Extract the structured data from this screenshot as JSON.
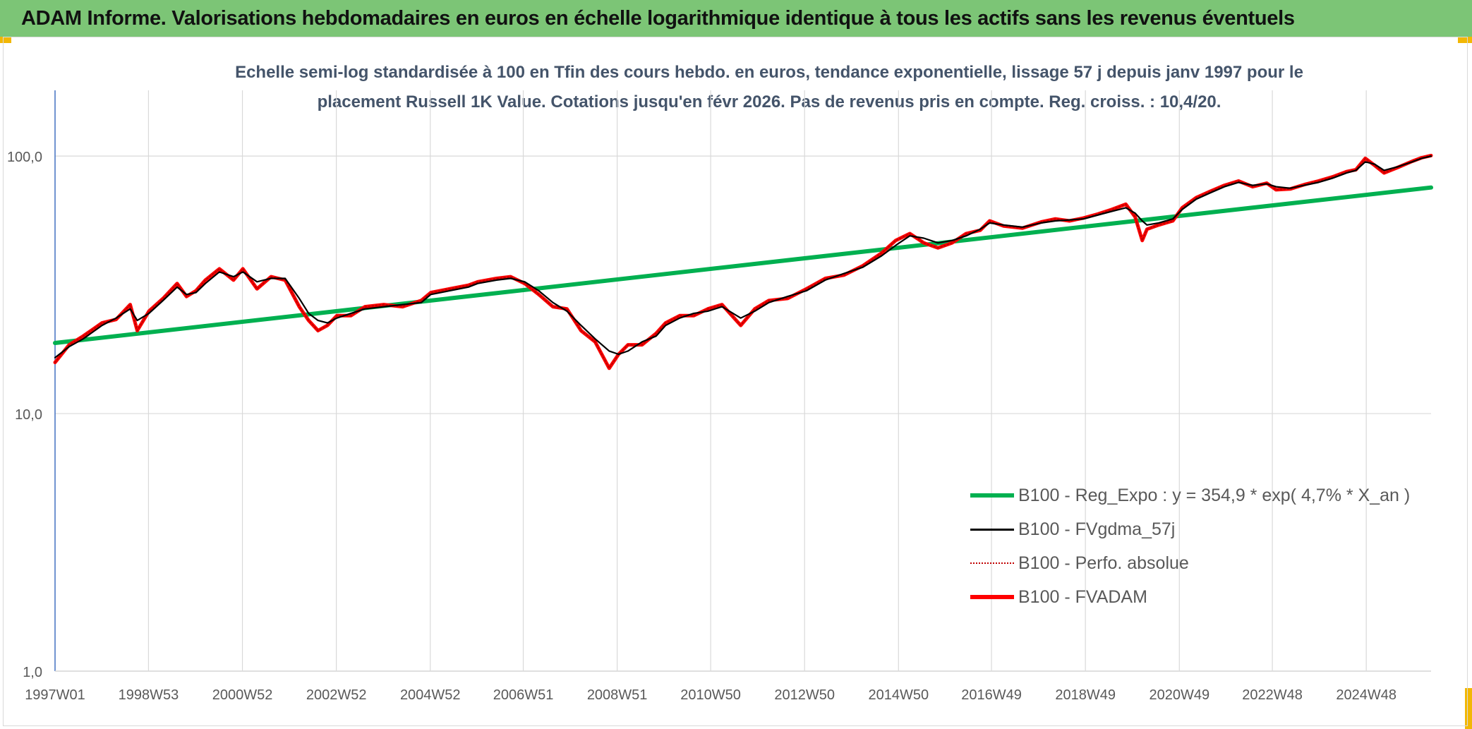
{
  "header": {
    "banner_title": "ADAM Informe. Valorisations hebdomadaires en euros en échelle logarithmique identique à tous les actifs sans les revenus éventuels"
  },
  "colors": {
    "banner_bg": "#7cc576",
    "accent_corner": "#f2b705",
    "title_text": "#44546a",
    "grid": "#d9d9d9",
    "axis": "#4472c4"
  },
  "chart_data": {
    "type": "line",
    "title_line1": "Echelle semi-log standardisée à 100 en Tfin des cours hebdo. en euros, tendance exponentielle, lissage 57 j depuis janv 1997 pour le",
    "title_line2": "placement Russell 1K Value. Cotations jusqu'en févr 2026. Pas de revenus pris en compte. Reg. croiss. : 10,4/20.",
    "y_scale": "log",
    "ylim": [
      1,
      180
    ],
    "xlim": [
      1997.0,
      2026.3
    ],
    "y_tick_values": [
      1,
      10,
      100
    ],
    "y_tick_labels": [
      "1,0",
      "10,0",
      "100,0"
    ],
    "x_tick_values": [
      1997.0,
      1998.99,
      2000.99,
      2002.99,
      2004.99,
      2006.97,
      2008.97,
      2010.96,
      2012.96,
      2014.96,
      2016.94,
      2018.94,
      2020.94,
      2022.92,
      2024.92
    ],
    "x_tick_labels": [
      "1997W01",
      "1998W53",
      "2000W52",
      "2002W52",
      "2004W52",
      "2006W51",
      "2008W51",
      "2010W50",
      "2012W50",
      "2014W50",
      "2016W49",
      "2018W49",
      "2020W49",
      "2022W48",
      "2024W48"
    ],
    "grid": true,
    "legend_position": "bottom-right",
    "series": [
      {
        "name": "B100 - Reg_Expo : y = 354,9 * exp( 4,7% *  X_an )",
        "color": "#00b050",
        "style": "solid-thick",
        "x": [
          1997.0,
          2026.3
        ],
        "y": [
          18.8,
          75.5
        ]
      },
      {
        "name": "B100 - FVgdma_57j",
        "color": "#000000",
        "style": "solid",
        "x": [
          1997.0,
          1997.3,
          1997.6,
          1998.0,
          1998.3,
          1998.6,
          1998.75,
          1999.0,
          1999.3,
          1999.6,
          1999.8,
          2000.0,
          2000.2,
          2000.5,
          2000.8,
          2001.0,
          2001.3,
          2001.6,
          2001.9,
          2002.2,
          2002.4,
          2002.6,
          2002.8,
          2003.0,
          2003.3,
          2003.6,
          2004.0,
          2004.4,
          2004.8,
          2005.0,
          2005.4,
          2005.8,
          2006.0,
          2006.4,
          2006.7,
          2007.0,
          2007.3,
          2007.6,
          2007.9,
          2008.2,
          2008.5,
          2008.8,
          2009.0,
          2009.2,
          2009.5,
          2009.8,
          2010.0,
          2010.3,
          2010.6,
          2010.9,
          2011.2,
          2011.6,
          2011.9,
          2012.2,
          2012.6,
          2013.0,
          2013.4,
          2013.8,
          2014.2,
          2014.6,
          2014.9,
          2015.2,
          2015.5,
          2015.8,
          2016.1,
          2016.4,
          2016.7,
          2016.9,
          2017.2,
          2017.6,
          2018.0,
          2018.3,
          2018.6,
          2018.9,
          2019.2,
          2019.5,
          2019.8,
          2020.0,
          2020.15,
          2020.25,
          2020.5,
          2020.8,
          2021.0,
          2021.3,
          2021.6,
          2021.9,
          2022.2,
          2022.5,
          2022.8,
          2023.0,
          2023.3,
          2023.6,
          2023.9,
          2024.2,
          2024.5,
          2024.7,
          2024.9,
          2025.1,
          2025.3,
          2025.6,
          2025.9,
          2026.1,
          2026.3
        ],
        "y": [
          16.5,
          18.2,
          19.5,
          22.0,
          23.5,
          25.5,
          23.0,
          24.5,
          27.5,
          31.0,
          29.0,
          29.5,
          32.0,
          35.5,
          34.0,
          35.5,
          32.5,
          33.5,
          33.5,
          28.0,
          24.5,
          23.0,
          22.5,
          23.5,
          24.5,
          25.5,
          26.0,
          26.5,
          27.0,
          29.0,
          30.0,
          31.0,
          32.0,
          33.0,
          33.5,
          32.5,
          30.0,
          27.0,
          25.0,
          22.0,
          19.5,
          17.5,
          17.0,
          17.5,
          19.0,
          20.0,
          22.0,
          23.5,
          24.5,
          25.0,
          26.0,
          23.5,
          25.0,
          27.0,
          28.5,
          30.0,
          33.0,
          35.0,
          37.0,
          41.0,
          45.0,
          49.0,
          48.0,
          46.0,
          47.0,
          49.0,
          52.0,
          55.0,
          54.0,
          53.0,
          55.0,
          56.0,
          56.5,
          57.0,
          59.0,
          61.0,
          63.0,
          60.0,
          56.0,
          54.0,
          55.0,
          57.0,
          62.0,
          68.0,
          72.0,
          76.0,
          79.0,
          77.0,
          78.0,
          76.0,
          75.0,
          77.0,
          79.0,
          82.0,
          86.0,
          88.0,
          95.0,
          93.0,
          88.0,
          91.0,
          95.0,
          98.0,
          100.0
        ]
      },
      {
        "name": "B100 - Perfo. absolue",
        "color": "#c00000",
        "style": "dotted",
        "x": [
          1997.0,
          1997.3,
          1997.6,
          1998.0,
          1998.3,
          1998.6,
          1998.75,
          1999.0,
          1999.3,
          1999.6,
          1999.8,
          2000.0,
          2000.2,
          2000.5,
          2000.8,
          2001.0,
          2001.3,
          2001.6,
          2001.9,
          2002.2,
          2002.4,
          2002.6,
          2002.8,
          2003.0,
          2003.3,
          2003.6,
          2004.0,
          2004.4,
          2004.8,
          2005.0,
          2005.4,
          2005.8,
          2006.0,
          2006.4,
          2006.7,
          2007.0,
          2007.3,
          2007.6,
          2007.9,
          2008.2,
          2008.5,
          2008.8,
          2009.0,
          2009.2,
          2009.5,
          2009.8,
          2010.0,
          2010.3,
          2010.6,
          2010.9,
          2011.2,
          2011.6,
          2011.9,
          2012.2,
          2012.6,
          2013.0,
          2013.4,
          2013.8,
          2014.2,
          2014.6,
          2014.9,
          2015.2,
          2015.5,
          2015.8,
          2016.1,
          2016.4,
          2016.7,
          2016.9,
          2017.2,
          2017.6,
          2018.0,
          2018.3,
          2018.6,
          2018.9,
          2019.2,
          2019.5,
          2019.8,
          2020.0,
          2020.15,
          2020.25,
          2020.5,
          2020.8,
          2021.0,
          2021.3,
          2021.6,
          2021.9,
          2022.2,
          2022.5,
          2022.8,
          2023.0,
          2023.3,
          2023.6,
          2023.9,
          2024.2,
          2024.5,
          2024.7,
          2024.9,
          2025.1,
          2025.3,
          2025.6,
          2025.9,
          2026.1,
          2026.3
        ],
        "y": [
          15.8,
          18.5,
          20.0,
          22.5,
          23.2,
          26.5,
          21.0,
          25.0,
          28.0,
          32.0,
          28.5,
          30.0,
          33.0,
          36.5,
          33.0,
          36.5,
          30.5,
          34.0,
          33.0,
          26.0,
          23.0,
          21.0,
          22.0,
          24.0,
          24.0,
          26.0,
          26.5,
          26.0,
          27.5,
          29.5,
          30.5,
          31.5,
          32.5,
          33.5,
          34.0,
          32.0,
          29.0,
          26.0,
          25.5,
          21.0,
          19.0,
          15.0,
          17.0,
          18.5,
          18.5,
          20.5,
          22.5,
          24.0,
          24.0,
          25.5,
          26.5,
          22.0,
          25.5,
          27.5,
          28.0,
          30.5,
          33.5,
          34.5,
          37.5,
          42.0,
          47.0,
          50.0,
          46.0,
          44.0,
          46.0,
          50.0,
          51.5,
          56.0,
          53.5,
          52.5,
          55.5,
          57.0,
          56.0,
          57.5,
          59.5,
          62.0,
          65.0,
          58.0,
          47.0,
          52.0,
          54.0,
          56.0,
          63.0,
          69.0,
          73.0,
          77.0,
          80.0,
          76.0,
          78.5,
          74.0,
          74.5,
          77.5,
          80.0,
          83.0,
          87.0,
          88.5,
          98.0,
          92.0,
          86.0,
          90.5,
          95.5,
          98.5,
          100.5
        ]
      },
      {
        "name": "B100 - FVADAM",
        "color": "#ff0000",
        "style": "solid-thick",
        "x": [
          1997.0,
          1997.3,
          1997.6,
          1998.0,
          1998.3,
          1998.6,
          1998.75,
          1999.0,
          1999.3,
          1999.6,
          1999.8,
          2000.0,
          2000.2,
          2000.5,
          2000.8,
          2001.0,
          2001.3,
          2001.6,
          2001.9,
          2002.2,
          2002.4,
          2002.6,
          2002.8,
          2003.0,
          2003.3,
          2003.6,
          2004.0,
          2004.4,
          2004.8,
          2005.0,
          2005.4,
          2005.8,
          2006.0,
          2006.4,
          2006.7,
          2007.0,
          2007.3,
          2007.6,
          2007.9,
          2008.2,
          2008.5,
          2008.8,
          2009.0,
          2009.2,
          2009.5,
          2009.8,
          2010.0,
          2010.3,
          2010.6,
          2010.9,
          2011.2,
          2011.6,
          2011.9,
          2012.2,
          2012.6,
          2013.0,
          2013.4,
          2013.8,
          2014.2,
          2014.6,
          2014.9,
          2015.2,
          2015.5,
          2015.8,
          2016.1,
          2016.4,
          2016.7,
          2016.9,
          2017.2,
          2017.6,
          2018.0,
          2018.3,
          2018.6,
          2018.9,
          2019.2,
          2019.5,
          2019.8,
          2020.0,
          2020.15,
          2020.25,
          2020.5,
          2020.8,
          2021.0,
          2021.3,
          2021.6,
          2021.9,
          2022.2,
          2022.5,
          2022.8,
          2023.0,
          2023.3,
          2023.6,
          2023.9,
          2024.2,
          2024.5,
          2024.7,
          2024.9,
          2025.1,
          2025.3,
          2025.6,
          2025.9,
          2026.1,
          2026.3
        ],
        "y": [
          15.8,
          18.5,
          20.0,
          22.5,
          23.2,
          26.5,
          21.0,
          25.0,
          28.0,
          32.0,
          28.5,
          30.0,
          33.0,
          36.5,
          33.0,
          36.5,
          30.5,
          34.0,
          33.0,
          26.0,
          23.0,
          21.0,
          22.0,
          24.0,
          24.0,
          26.0,
          26.5,
          26.0,
          27.5,
          29.5,
          30.5,
          31.5,
          32.5,
          33.5,
          34.0,
          32.0,
          29.0,
          26.0,
          25.5,
          21.0,
          19.0,
          15.0,
          17.0,
          18.5,
          18.5,
          20.5,
          22.5,
          24.0,
          24.0,
          25.5,
          26.5,
          22.0,
          25.5,
          27.5,
          28.0,
          30.5,
          33.5,
          34.5,
          37.5,
          42.0,
          47.0,
          50.0,
          46.0,
          44.0,
          46.0,
          50.0,
          51.5,
          56.0,
          53.5,
          52.5,
          55.5,
          57.0,
          56.0,
          57.5,
          59.5,
          62.0,
          65.0,
          58.0,
          47.0,
          52.0,
          54.0,
          56.0,
          63.0,
          69.0,
          73.0,
          77.0,
          80.0,
          76.0,
          78.5,
          74.0,
          74.5,
          77.5,
          80.0,
          83.0,
          87.0,
          88.5,
          98.0,
          92.0,
          86.0,
          90.5,
          95.5,
          98.5,
          100.5
        ]
      }
    ]
  }
}
